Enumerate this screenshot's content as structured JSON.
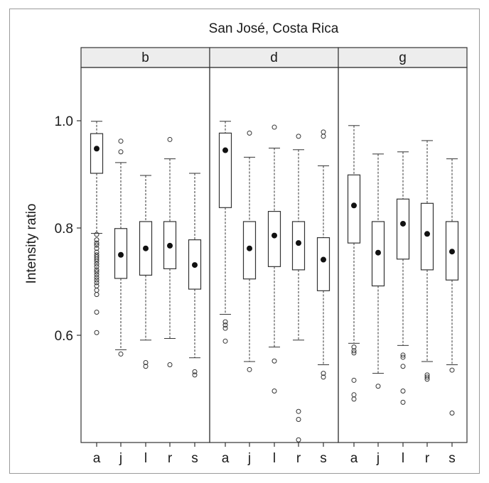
{
  "chart_data": {
    "type": "boxplot",
    "title": "San José, Costa Rica",
    "ylabel": "Intensity ratio",
    "xlabel": "",
    "ylim": [
      0.4,
      1.1
    ],
    "yticks": [
      0.6,
      0.8,
      1.0
    ],
    "ytick_labels": [
      "0.6",
      "0.8",
      "1.0"
    ],
    "categories": [
      "a",
      "j",
      "l",
      "r",
      "s"
    ],
    "grid": false,
    "panels": [
      {
        "name": "b",
        "boxes": [
          {
            "category": "a",
            "whisker_low": 0.79,
            "q1": 0.902,
            "median": 0.948,
            "q3": 0.976,
            "whisker_high": 0.999,
            "outliers": [
              0.605,
              0.643,
              0.676,
              0.684,
              0.692,
              0.698,
              0.703,
              0.708,
              0.713,
              0.718,
              0.722,
              0.728,
              0.733,
              0.738,
              0.742,
              0.746,
              0.75,
              0.755,
              0.762,
              0.768,
              0.772,
              0.778,
              0.788
            ]
          },
          {
            "category": "j",
            "whisker_low": 0.573,
            "q1": 0.706,
            "median": 0.75,
            "q3": 0.799,
            "whisker_high": 0.922,
            "outliers": [
              0.565,
              0.942,
              0.962
            ]
          },
          {
            "category": "l",
            "whisker_low": 0.591,
            "q1": 0.712,
            "median": 0.762,
            "q3": 0.812,
            "whisker_high": 0.898,
            "outliers": [
              0.542,
              0.549
            ]
          },
          {
            "category": "r",
            "whisker_low": 0.594,
            "q1": 0.724,
            "median": 0.767,
            "q3": 0.812,
            "whisker_high": 0.929,
            "outliers": [
              0.545,
              0.965
            ]
          },
          {
            "category": "s",
            "whisker_low": 0.558,
            "q1": 0.686,
            "median": 0.731,
            "q3": 0.778,
            "whisker_high": 0.902,
            "outliers": [
              0.526,
              0.532
            ]
          }
        ]
      },
      {
        "name": "d",
        "boxes": [
          {
            "category": "a",
            "whisker_low": 0.639,
            "q1": 0.838,
            "median": 0.945,
            "q3": 0.977,
            "whisker_high": 0.999,
            "outliers": [
              0.589,
              0.613,
              0.619,
              0.625
            ]
          },
          {
            "category": "j",
            "whisker_low": 0.551,
            "q1": 0.705,
            "median": 0.762,
            "q3": 0.812,
            "whisker_high": 0.932,
            "outliers": [
              0.536,
              0.977
            ]
          },
          {
            "category": "l",
            "whisker_low": 0.578,
            "q1": 0.728,
            "median": 0.786,
            "q3": 0.831,
            "whisker_high": 0.949,
            "outliers": [
              0.496,
              0.552,
              0.988
            ]
          },
          {
            "category": "r",
            "whisker_low": 0.591,
            "q1": 0.722,
            "median": 0.772,
            "q3": 0.812,
            "whisker_high": 0.946,
            "outliers": [
              0.405,
              0.443,
              0.458,
              0.971
            ]
          },
          {
            "category": "s",
            "whisker_low": 0.545,
            "q1": 0.683,
            "median": 0.741,
            "q3": 0.782,
            "whisker_high": 0.916,
            "outliers": [
              0.522,
              0.529,
              0.971,
              0.979
            ]
          }
        ]
      },
      {
        "name": "g",
        "boxes": [
          {
            "category": "a",
            "whisker_low": 0.585,
            "q1": 0.772,
            "median": 0.842,
            "q3": 0.899,
            "whisker_high": 0.991,
            "outliers": [
              0.481,
              0.489,
              0.516,
              0.567,
              0.571,
              0.578
            ]
          },
          {
            "category": "j",
            "whisker_low": 0.529,
            "q1": 0.692,
            "median": 0.754,
            "q3": 0.812,
            "whisker_high": 0.938,
            "outliers": [
              0.505
            ]
          },
          {
            "category": "l",
            "whisker_low": 0.581,
            "q1": 0.742,
            "median": 0.808,
            "q3": 0.854,
            "whisker_high": 0.942,
            "outliers": [
              0.475,
              0.496,
              0.542,
              0.559,
              0.563
            ]
          },
          {
            "category": "r",
            "whisker_low": 0.551,
            "q1": 0.722,
            "median": 0.789,
            "q3": 0.846,
            "whisker_high": 0.963,
            "outliers": [
              0.518,
              0.522,
              0.526
            ]
          },
          {
            "category": "s",
            "whisker_low": 0.545,
            "q1": 0.703,
            "median": 0.756,
            "q3": 0.812,
            "whisker_high": 0.929,
            "outliers": [
              0.455,
              0.535
            ]
          }
        ]
      }
    ]
  }
}
